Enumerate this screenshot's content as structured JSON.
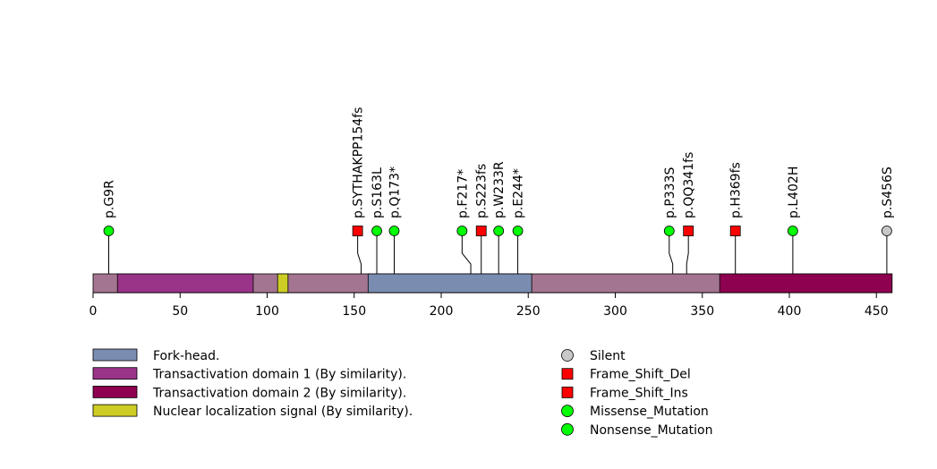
{
  "chart_data": {
    "type": "lollipop",
    "xlim": [
      0,
      459
    ],
    "ticks": [
      0,
      50,
      100,
      150,
      200,
      250,
      300,
      350,
      400,
      450
    ],
    "protein": {
      "start": 0,
      "end": 459,
      "base_color": "#A47590"
    },
    "domains": [
      {
        "name": "Transactivation domain 1 (By similarity).",
        "start": 14,
        "end": 92,
        "color": "#9A3488"
      },
      {
        "name": "Nuclear localization signal (By similarity).",
        "start": 106,
        "end": 112,
        "color": "#CDCD25"
      },
      {
        "name": "Fork-head.",
        "start": 158,
        "end": 252,
        "color": "#7A8CB0"
      },
      {
        "name": "Transactivation domain 2 (By similarity).",
        "start": 360,
        "end": 459,
        "color": "#8E0050"
      }
    ],
    "mutations": [
      {
        "label": "p.G9R",
        "position": 9,
        "label_position": 9,
        "type": "Missense_Mutation"
      },
      {
        "label": "p.SYTHAKPP154fs",
        "position": 154,
        "label_position": 152,
        "type": "Frame_Shift_Del"
      },
      {
        "label": "p.S163L",
        "position": 163,
        "label_position": 163,
        "type": "Missense_Mutation"
      },
      {
        "label": "p.Q173*",
        "position": 173,
        "label_position": 173,
        "type": "Nonsense_Mutation"
      },
      {
        "label": "p.F217*",
        "position": 217,
        "label_position": 212,
        "type": "Nonsense_Mutation"
      },
      {
        "label": "p.S223fs",
        "position": 223,
        "label_position": 223,
        "type": "Frame_Shift_Del"
      },
      {
        "label": "p.W233R",
        "position": 233,
        "label_position": 233,
        "type": "Missense_Mutation"
      },
      {
        "label": "p.E244*",
        "position": 244,
        "label_position": 244,
        "type": "Nonsense_Mutation"
      },
      {
        "label": "p.P333S",
        "position": 333,
        "label_position": 331,
        "type": "Missense_Mutation"
      },
      {
        "label": "p.QQ341fs",
        "position": 341,
        "label_position": 342,
        "type": "Frame_Shift_Ins"
      },
      {
        "label": "p.H369fs",
        "position": 369,
        "label_position": 369,
        "type": "Frame_Shift_Del"
      },
      {
        "label": "p.L402H",
        "position": 402,
        "label_position": 402,
        "type": "Missense_Mutation"
      },
      {
        "label": "p.S456S",
        "position": 456,
        "label_position": 456,
        "type": "Silent"
      }
    ],
    "legend_domains": [
      {
        "label": "Fork-head.",
        "color": "#7A8CB0"
      },
      {
        "label": "Transactivation domain 1 (By similarity).",
        "color": "#9A3488"
      },
      {
        "label": "Transactivation domain 2 (By similarity).",
        "color": "#8E0050"
      },
      {
        "label": "Nuclear localization signal (By similarity).",
        "color": "#CDCD25"
      }
    ],
    "legend_mutations": [
      {
        "label": "Silent",
        "shape": "circle",
        "color": "#C8C8C8"
      },
      {
        "label": "Frame_Shift_Del",
        "shape": "square",
        "color": "#FF0000"
      },
      {
        "label": "Frame_Shift_Ins",
        "shape": "square",
        "color": "#FF0000"
      },
      {
        "label": "Missense_Mutation",
        "shape": "circle",
        "color": "#00FF00"
      },
      {
        "label": "Nonsense_Mutation",
        "shape": "circle",
        "color": "#00FF00"
      }
    ],
    "mutation_styles": {
      "Silent": {
        "shape": "circle",
        "color": "#C8C8C8"
      },
      "Frame_Shift_Del": {
        "shape": "square",
        "color": "#FF0000"
      },
      "Frame_Shift_Ins": {
        "shape": "square",
        "color": "#FF0000"
      },
      "Missense_Mutation": {
        "shape": "circle",
        "color": "#00FF00"
      },
      "Nonsense_Mutation": {
        "shape": "circle",
        "color": "#00FF00"
      }
    }
  }
}
